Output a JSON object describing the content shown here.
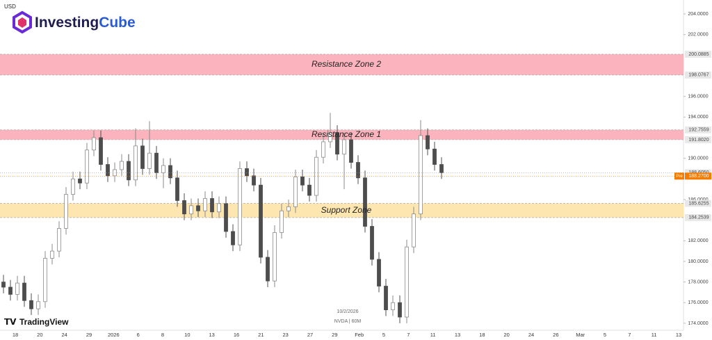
{
  "chart_data": {
    "type": "candlestick",
    "logo": {
      "word1": "Investing",
      "word2": "Cube"
    },
    "brand": "TradingView",
    "date": "10/2/2026",
    "symbol": "NVDA | 60M",
    "currency": "USD",
    "up_color": "#8a8a8a",
    "down_color": "#4d4d4d",
    "ylim": [
      173.32,
      205.35
    ],
    "yticks": [
      {
        "value": 174,
        "label": "174.0000"
      },
      {
        "value": 176,
        "label": "176.0000"
      },
      {
        "value": 178,
        "label": "178.0000"
      },
      {
        "value": 180,
        "label": "180.0000"
      },
      {
        "value": 182,
        "label": "182.0000"
      },
      {
        "value": 186,
        "label": "186.0000"
      },
      {
        "value": 190,
        "label": "190.0000"
      },
      {
        "value": 194,
        "label": "194.0000"
      },
      {
        "value": 196,
        "label": "196.0000"
      },
      {
        "value": 202,
        "label": "202.0000"
      },
      {
        "value": 204,
        "label": "204.0000"
      }
    ],
    "zones": [
      {
        "name": "Resistance Zone 2",
        "color": "#fbb4bd",
        "low": {
          "value": 198.0767,
          "label": "198.0767"
        },
        "high": {
          "value": 200.0885,
          "label": "200.0885"
        }
      },
      {
        "name": "Resistance Zone 1",
        "color": "#fbb4bd",
        "low": {
          "value": 191.802,
          "label": "191.8020"
        },
        "high": {
          "value": 192.7559,
          "label": "192.7559"
        }
      },
      {
        "name": "Support Zone",
        "color": "#fde6b0",
        "low": {
          "value": 184.2539,
          "label": "184.2539"
        },
        "high": {
          "value": 185.6255,
          "label": "185.6255"
        }
      }
    ],
    "last_price": {
      "value": 188.605,
      "label": "188.6050"
    },
    "pre_price": {
      "tag": "Pre",
      "value": 188.27,
      "label": "188.2700",
      "color": "#f57c00"
    },
    "categories": [
      "18",
      "20",
      "24",
      "29",
      "2026",
      "6",
      "8",
      "10",
      "13",
      "16",
      "21",
      "23",
      "27",
      "29",
      "Feb",
      "5",
      "7",
      "11",
      "13",
      "18",
      "20",
      "24",
      "26",
      "Mar",
      "5",
      "7",
      "11",
      "13"
    ],
    "open": [
      178.0,
      177.5,
      176.8,
      177.9,
      176.2,
      175.4,
      176.1,
      180.3,
      181.0,
      183.2,
      186.5,
      188.0,
      187.6,
      190.8,
      192.0,
      189.4,
      188.3,
      188.9,
      189.7,
      187.9,
      191.2,
      189.0,
      190.5,
      188.6,
      189.3,
      188.1,
      185.9,
      184.6,
      185.4,
      184.9,
      186.1,
      184.8,
      185.6,
      182.9,
      181.6,
      189.0,
      188.3,
      187.4,
      180.4,
      178.1,
      182.8,
      184.9,
      185.3,
      188.2,
      187.4,
      186.4,
      190.1,
      191.6,
      192.5,
      190.4,
      191.8,
      189.6,
      188.1,
      183.4,
      180.2,
      177.6,
      175.3,
      176.0,
      174.6,
      181.4,
      184.6,
      192.2,
      190.9,
      189.4
    ],
    "high": [
      178.7,
      178.2,
      178.6,
      178.6,
      176.9,
      176.8,
      181.0,
      181.7,
      183.9,
      187.2,
      188.7,
      188.7,
      191.5,
      192.7,
      192.7,
      190.1,
      189.6,
      190.4,
      190.4,
      192.9,
      191.9,
      193.6,
      191.2,
      190.0,
      190.0,
      188.8,
      186.6,
      186.1,
      186.1,
      186.8,
      186.8,
      186.3,
      186.3,
      183.6,
      189.7,
      189.7,
      189.0,
      188.1,
      181.1,
      183.5,
      185.6,
      186.0,
      188.9,
      188.9,
      188.1,
      190.8,
      192.3,
      194.4,
      193.2,
      192.5,
      192.5,
      190.3,
      188.8,
      184.1,
      180.9,
      178.3,
      176.7,
      176.7,
      182.1,
      185.3,
      193.7,
      192.9,
      191.6,
      190.1
    ],
    "low": [
      176.9,
      176.2,
      176.2,
      175.6,
      174.8,
      174.8,
      175.5,
      179.7,
      180.4,
      182.6,
      185.9,
      187.0,
      187.0,
      190.2,
      188.8,
      187.7,
      187.7,
      188.3,
      187.3,
      187.3,
      188.4,
      188.4,
      188.0,
      187.1,
      187.5,
      185.3,
      184.0,
      184.0,
      184.3,
      184.3,
      184.2,
      184.2,
      182.3,
      181.0,
      181.0,
      187.7,
      186.8,
      179.8,
      177.5,
      177.5,
      182.2,
      184.3,
      184.7,
      186.8,
      185.8,
      185.8,
      189.5,
      191.0,
      189.8,
      187.0,
      189.0,
      187.5,
      182.8,
      179.6,
      177.0,
      174.7,
      174.7,
      174.0,
      174.0,
      180.8,
      184.0,
      190.3,
      188.8,
      188.0
    ],
    "close": [
      177.5,
      176.8,
      177.9,
      176.2,
      175.4,
      176.1,
      180.3,
      181.0,
      183.2,
      186.5,
      188.0,
      187.6,
      190.8,
      192.0,
      189.4,
      188.3,
      188.9,
      189.7,
      187.9,
      191.2,
      189.0,
      190.5,
      188.6,
      189.3,
      188.1,
      185.9,
      184.6,
      185.4,
      184.9,
      186.1,
      184.8,
      185.6,
      182.9,
      181.6,
      189.0,
      188.3,
      187.4,
      180.4,
      178.1,
      182.8,
      184.9,
      185.3,
      188.2,
      187.4,
      186.4,
      190.1,
      191.6,
      192.5,
      190.4,
      191.8,
      189.6,
      188.1,
      183.4,
      180.2,
      177.6,
      175.3,
      176.0,
      174.6,
      181.4,
      184.6,
      192.2,
      190.9,
      189.4,
      188.6
    ]
  }
}
